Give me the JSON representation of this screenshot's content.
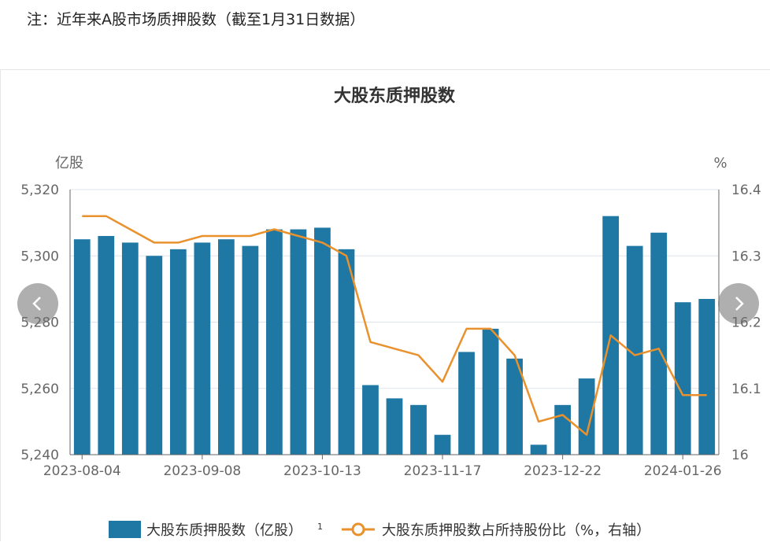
{
  "note": "注：近年来A股市场质押股数（截至1月31日数据）",
  "chart_data": {
    "type": "bar",
    "title": "大股东质押股数",
    "ylabel": "亿股",
    "y2label": "%",
    "ylim": [
      5240,
      5320
    ],
    "y2lim": [
      16.0,
      16.4
    ],
    "yticks": [
      "5,240",
      "5,260",
      "5,280",
      "5,300",
      "5,320"
    ],
    "y2ticks": [
      "16",
      "16.1",
      "16.2",
      "16.3",
      "16.4"
    ],
    "xtick_labels": [
      "2023-08-04",
      "2023-09-08",
      "2023-10-13",
      "2023-11-17",
      "2023-12-22",
      "2024-01-26"
    ],
    "x": [
      "2023-08-04",
      "2023-08-11",
      "2023-08-18",
      "2023-08-25",
      "2023-09-01",
      "2023-09-08",
      "2023-09-15",
      "2023-09-22",
      "2023-09-29",
      "2023-10-06",
      "2023-10-13",
      "2023-10-20",
      "2023-10-27",
      "2023-11-03",
      "2023-11-10",
      "2023-11-17",
      "2023-11-24",
      "2023-12-01",
      "2023-12-08",
      "2023-12-15",
      "2023-12-22",
      "2023-12-29",
      "2024-01-05",
      "2024-01-12",
      "2024-01-19",
      "2024-01-26",
      "2024-02-02"
    ],
    "series": [
      {
        "name": "大股东质押股数（亿股）",
        "type": "bar",
        "color": "#1f77a4",
        "values": [
          5305,
          5306,
          5304,
          5300,
          5302,
          5304,
          5305,
          5303,
          5308,
          5308,
          5308.5,
          5302,
          5261,
          5257,
          5255,
          5246,
          5271,
          5278,
          5269,
          5243,
          5255,
          5263,
          5312,
          5303,
          5307,
          5286,
          5287
        ]
      },
      {
        "name": "大股东质押股数占所持股份比（%，右轴）",
        "type": "line",
        "color": "#e8912d",
        "values": [
          16.36,
          16.36,
          16.34,
          16.32,
          16.32,
          16.33,
          16.33,
          16.33,
          16.34,
          16.33,
          16.32,
          16.3,
          16.17,
          16.16,
          16.15,
          16.11,
          16.19,
          16.19,
          16.15,
          16.05,
          16.06,
          16.03,
          16.18,
          16.15,
          16.16,
          16.09,
          16.09
        ]
      }
    ],
    "legend_position": "bottom",
    "legend_bar_label": "大股东质押股数（亿股）",
    "legend_line_label": "大股东质押股数占所持股份比（%，右轴）",
    "grid": true,
    "colors": {
      "bar": "#1f77a4",
      "line": "#e8912d",
      "grid": "#dde4ee",
      "axis": "#666666"
    }
  }
}
